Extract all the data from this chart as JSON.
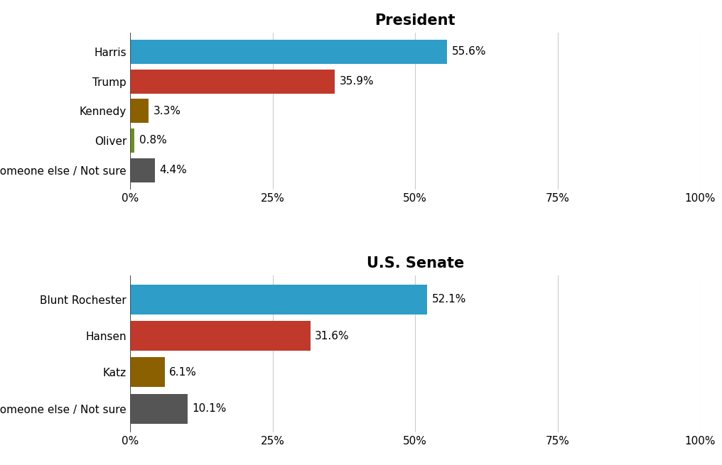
{
  "president": {
    "title": "President",
    "categories": [
      "Harris",
      "Trump",
      "Kennedy",
      "Oliver",
      "Someone else / Not sure"
    ],
    "values": [
      55.6,
      35.9,
      3.3,
      0.8,
      4.4
    ],
    "colors": [
      "#2E9DC8",
      "#C0392B",
      "#8B6000",
      "#6B8E23",
      "#555555"
    ],
    "labels": [
      "55.6%",
      "35.9%",
      "3.3%",
      "0.8%",
      "4.4%"
    ]
  },
  "senate": {
    "title": "U.S. Senate",
    "categories": [
      "Blunt Rochester",
      "Hansen",
      "Katz",
      "Someone else / Not sure"
    ],
    "values": [
      52.1,
      31.6,
      6.1,
      10.1
    ],
    "colors": [
      "#2E9DC8",
      "#C0392B",
      "#8B6000",
      "#555555"
    ],
    "labels": [
      "52.1%",
      "31.6%",
      "6.1%",
      "10.1%"
    ]
  },
  "xlim": [
    0,
    100
  ],
  "xticks": [
    0,
    25,
    50,
    75,
    100
  ],
  "xticklabels": [
    "0%",
    "25%",
    "50%",
    "75%",
    "100%"
  ],
  "background_color": "#ffffff",
  "bar_height": 0.82,
  "label_fontsize": 11,
  "title_fontsize": 15,
  "tick_fontsize": 11,
  "category_fontsize": 11
}
